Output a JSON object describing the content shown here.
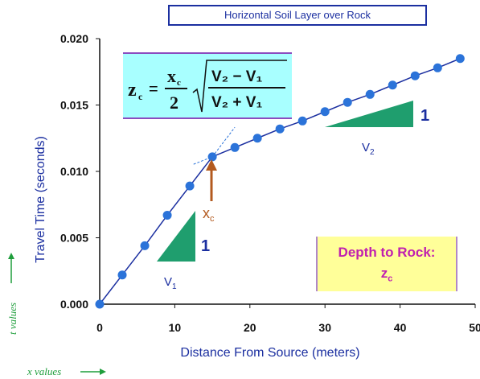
{
  "chart_data": {
    "type": "line",
    "title": "Horizontal Soil Layer over Rock",
    "xlabel": "Distance From Source (meters)",
    "ylabel": "Travel Time (seconds)",
    "xlim": [
      0,
      50
    ],
    "ylim": [
      0,
      0.02
    ],
    "x_ticks": [
      "0",
      "10",
      "20",
      "30",
      "40",
      "50"
    ],
    "y_ticks": [
      "0.000",
      "0.005",
      "0.010",
      "0.015",
      "0.020"
    ],
    "grid": false,
    "series": [
      {
        "x": [
          0,
          3,
          6,
          9,
          12,
          15,
          18,
          21,
          24,
          27,
          30,
          33,
          36,
          39,
          42,
          45,
          48
        ],
        "values": [
          0.0,
          0.0022,
          0.0044,
          0.0067,
          0.0089,
          0.0111,
          0.0118,
          0.0125,
          0.0132,
          0.0138,
          0.0145,
          0.0152,
          0.0158,
          0.0165,
          0.0172,
          0.0178,
          0.0185
        ]
      }
    ],
    "slope_lines": {
      "v1_slope": 0.00074,
      "v2_slope": 0.000225,
      "crossover_x": 15
    }
  },
  "annotations": {
    "xc_label": "x",
    "xc_sub": "c",
    "v1_label": "V",
    "v1_sub": "1",
    "v2_label": "V",
    "v2_sub": "2",
    "one_label_1": "1",
    "one_label_2": "1",
    "depth_line1": "Depth to Rock:",
    "depth_line2": "z",
    "depth_sub": "c",
    "t_values": "t values",
    "x_values": "x values"
  },
  "formula": {
    "lhs": "z",
    "lhs_sub": "c",
    "eq": "=",
    "num": "x",
    "num_sub": "c",
    "den": "2",
    "rad_num": "V₂ − V₁",
    "rad_den": "V₂ + V₁"
  },
  "colors": {
    "axis": "#111111",
    "line": "#1b2fa0",
    "marker": "#2b73d9",
    "triangle": "#1f9e6e",
    "arrow": "#b35a1f",
    "formula_bg": "#a8ffff",
    "depth_bg": "#ffff99",
    "depth_text": "#c020b0",
    "label_text": "#1b2fa0",
    "axis_label": "#1b2fa0",
    "side_labels": "#1f9e3c"
  }
}
